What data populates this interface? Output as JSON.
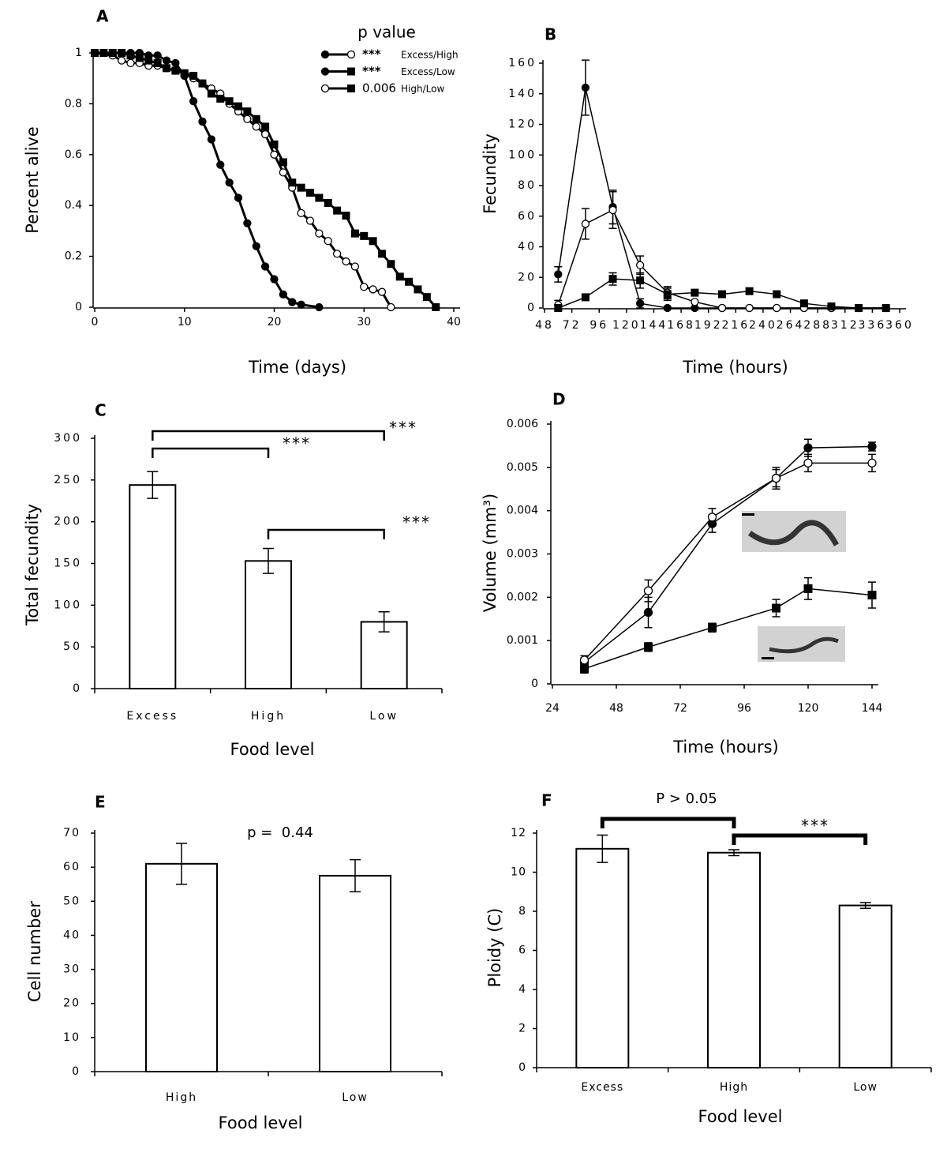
{
  "chart_data": [
    {
      "type": "line",
      "panel": "A",
      "xlabel": "Time (days)",
      "ylabel": "Percent alive",
      "xlim": [
        0,
        40
      ],
      "xticks": [
        0,
        10,
        20,
        30,
        40
      ],
      "ylim": [
        0,
        1
      ],
      "yticks": [
        0,
        0.2,
        0.4,
        0.6,
        0.8,
        1
      ],
      "legend": {
        "title": "p value",
        "entries": [
          {
            "markers": [
              "filled-circle",
              "open-circle"
            ],
            "p": "***",
            "label": "Excess/High"
          },
          {
            "markers": [
              "filled-circle",
              "filled-square"
            ],
            "p": "***",
            "label": "Excess/Low"
          },
          {
            "markers": [
              "open-circle",
              "filled-square"
            ],
            "p": "0.006",
            "label": "High/Low"
          }
        ]
      },
      "series": [
        {
          "marker": "filled-circle",
          "color": "#000000",
          "x": [
            0,
            2,
            3,
            4,
            5,
            6,
            7,
            8,
            9,
            10,
            11,
            12,
            13,
            14,
            15,
            16,
            17,
            18,
            19,
            20,
            21,
            22,
            23,
            25
          ],
          "values": [
            1,
            1,
            1,
            1,
            1,
            0.99,
            0.99,
            0.97,
            0.96,
            0.91,
            0.81,
            0.73,
            0.66,
            0.56,
            0.49,
            0.43,
            0.33,
            0.24,
            0.16,
            0.11,
            0.05,
            0.02,
            0.01,
            0
          ]
        },
        {
          "marker": "open-circle",
          "color": "#000000",
          "x": [
            0,
            2,
            3,
            4,
            5,
            6,
            7,
            8,
            9,
            10,
            11,
            12,
            13,
            14,
            15,
            16,
            17,
            18,
            19,
            20,
            21,
            22,
            23,
            24,
            25,
            26,
            27,
            28,
            29,
            30,
            31,
            32,
            33
          ],
          "values": [
            1,
            0.99,
            0.97,
            0.96,
            0.96,
            0.95,
            0.95,
            0.94,
            0.93,
            0.92,
            0.9,
            0.88,
            0.86,
            0.84,
            0.8,
            0.77,
            0.74,
            0.71,
            0.68,
            0.6,
            0.53,
            0.47,
            0.37,
            0.34,
            0.29,
            0.26,
            0.21,
            0.18,
            0.16,
            0.08,
            0.07,
            0.06,
            0
          ]
        },
        {
          "marker": "filled-square",
          "color": "#000000",
          "x": [
            0,
            1,
            2,
            3,
            4,
            5,
            6,
            7,
            8,
            9,
            10,
            11,
            12,
            13,
            14,
            15,
            16,
            17,
            18,
            19,
            20,
            21,
            22,
            23,
            24,
            25,
            26,
            27,
            28,
            29,
            30,
            31,
            32,
            33,
            34,
            35,
            36,
            37,
            38
          ],
          "values": [
            1,
            1,
            1,
            1,
            0.99,
            0.98,
            0.97,
            0.96,
            0.94,
            0.93,
            0.92,
            0.91,
            0.88,
            0.84,
            0.82,
            0.81,
            0.79,
            0.77,
            0.74,
            0.71,
            0.64,
            0.57,
            0.49,
            0.47,
            0.45,
            0.43,
            0.41,
            0.38,
            0.36,
            0.29,
            0.28,
            0.26,
            0.21,
            0.17,
            0.12,
            0.1,
            0.07,
            0.04,
            0
          ]
        }
      ]
    },
    {
      "type": "line",
      "panel": "B",
      "xlabel": "Time (hours)",
      "ylabel": "Fecundity",
      "xlim": [
        48,
        360
      ],
      "xticks": [
        48,
        72,
        96,
        120,
        144,
        168,
        192,
        216,
        240,
        264,
        288,
        312,
        336,
        360
      ],
      "ylim": [
        0,
        160
      ],
      "yticks": [
        0,
        20,
        40,
        60,
        80,
        100,
        120,
        140,
        160
      ],
      "series": [
        {
          "marker": "filled-circle",
          "color": "#000000",
          "x": [
            60,
            84,
            108,
            132,
            156,
            180,
            204,
            228,
            252,
            276,
            300,
            324,
            348
          ],
          "values": [
            22,
            144,
            66,
            3,
            0,
            0,
            0,
            0,
            0,
            0,
            0,
            0,
            0
          ],
          "errors": [
            5,
            18,
            11,
            3,
            null,
            null,
            null,
            null,
            null,
            null,
            null,
            null,
            null
          ]
        },
        {
          "marker": "open-circle",
          "color": "#000000",
          "x": [
            60,
            84,
            108,
            132,
            156,
            180,
            204,
            228,
            252,
            276,
            300,
            324,
            348
          ],
          "values": [
            2,
            55,
            64,
            28,
            10,
            4,
            0,
            0,
            0,
            0,
            0,
            0,
            0
          ],
          "errors": [
            3,
            10,
            12,
            6,
            4,
            null,
            null,
            null,
            null,
            null,
            null,
            null,
            null
          ]
        },
        {
          "marker": "filled-square",
          "color": "#000000",
          "x": [
            60,
            84,
            108,
            132,
            156,
            180,
            204,
            228,
            252,
            276,
            300,
            324,
            348
          ],
          "values": [
            0,
            7,
            19,
            18,
            9,
            10,
            9,
            11,
            9,
            3,
            1,
            0,
            0
          ],
          "errors": [
            null,
            null,
            4,
            5,
            4,
            null,
            null,
            null,
            null,
            null,
            null,
            null,
            null
          ]
        }
      ]
    },
    {
      "type": "bar",
      "panel": "C",
      "xlabel": "Food level",
      "ylabel": "Total fecundity",
      "ylim": [
        0,
        300
      ],
      "yticks": [
        0,
        50,
        100,
        150,
        200,
        250,
        300
      ],
      "categories": [
        "Excess",
        "High",
        "Low"
      ],
      "values": [
        244,
        153,
        80
      ],
      "errors": [
        16,
        15,
        12
      ],
      "color": "#ffffff",
      "brackets": [
        {
          "between": [
            "Excess",
            "High"
          ],
          "label": "***"
        },
        {
          "between": [
            "Excess",
            "Low"
          ],
          "label": "***"
        },
        {
          "between": [
            "High",
            "Low"
          ],
          "label": "***"
        }
      ]
    },
    {
      "type": "line",
      "panel": "D",
      "xlabel": "Time (hours)",
      "ylabel": "Volume (mm³)",
      "xlim": [
        24,
        144
      ],
      "xticks": [
        24,
        48,
        72,
        96,
        120,
        144
      ],
      "ylim": [
        0,
        0.006
      ],
      "yticks": [
        0,
        0.001,
        0.002,
        0.003,
        0.004,
        0.005,
        0.006
      ],
      "series": [
        {
          "marker": "filled-circle",
          "color": "#000000",
          "x": [
            36,
            60,
            84,
            108,
            120,
            144
          ],
          "values": [
            0.0005,
            0.00165,
            0.0037,
            0.00475,
            0.00545,
            0.00548
          ],
          "errors": [
            0.0001,
            0.00035,
            0.0002,
            0.0002,
            0.0002,
            0.0001
          ]
        },
        {
          "marker": "open-circle",
          "color": "#000000",
          "x": [
            36,
            60,
            84,
            108,
            120,
            144
          ],
          "values": [
            0.00055,
            0.00215,
            0.00385,
            0.00475,
            0.0051,
            0.0051
          ],
          "errors": [
            0.0001,
            0.00025,
            0.0002,
            0.00025,
            0.0002,
            0.0002
          ]
        },
        {
          "marker": "filled-square",
          "color": "#000000",
          "x": [
            36,
            60,
            84,
            108,
            120,
            144
          ],
          "values": [
            0.00035,
            0.00085,
            0.0013,
            0.00175,
            0.0022,
            0.00205
          ],
          "errors": [
            0.0001,
            0.0001,
            0.0001,
            0.0002,
            0.00025,
            0.0003
          ]
        }
      ]
    },
    {
      "type": "bar",
      "panel": "E",
      "xlabel": "Food level",
      "ylabel": "Cell number",
      "annotation": "p =  0.44",
      "ylim": [
        0,
        70
      ],
      "yticks": [
        0,
        10,
        20,
        30,
        40,
        50,
        60,
        70
      ],
      "categories": [
        "High",
        "Low"
      ],
      "values": [
        61,
        57.5
      ],
      "errors": [
        6,
        4.7
      ],
      "color": "#ffffff"
    },
    {
      "type": "bar",
      "panel": "F",
      "xlabel": "Food level",
      "ylabel": "Ploidy (C)",
      "ylim": [
        0,
        12
      ],
      "yticks": [
        0,
        2,
        4,
        6,
        8,
        10,
        12
      ],
      "categories": [
        "Excess",
        "High",
        "Low"
      ],
      "values": [
        11.2,
        11.0,
        8.3
      ],
      "errors": [
        0.7,
        0.15,
        0.15
      ],
      "color": "#ffffff",
      "brackets": [
        {
          "between": [
            "Excess",
            "High"
          ],
          "label": "P > 0.05"
        },
        {
          "between": [
            "High",
            "Low"
          ],
          "label": "***"
        }
      ]
    }
  ]
}
